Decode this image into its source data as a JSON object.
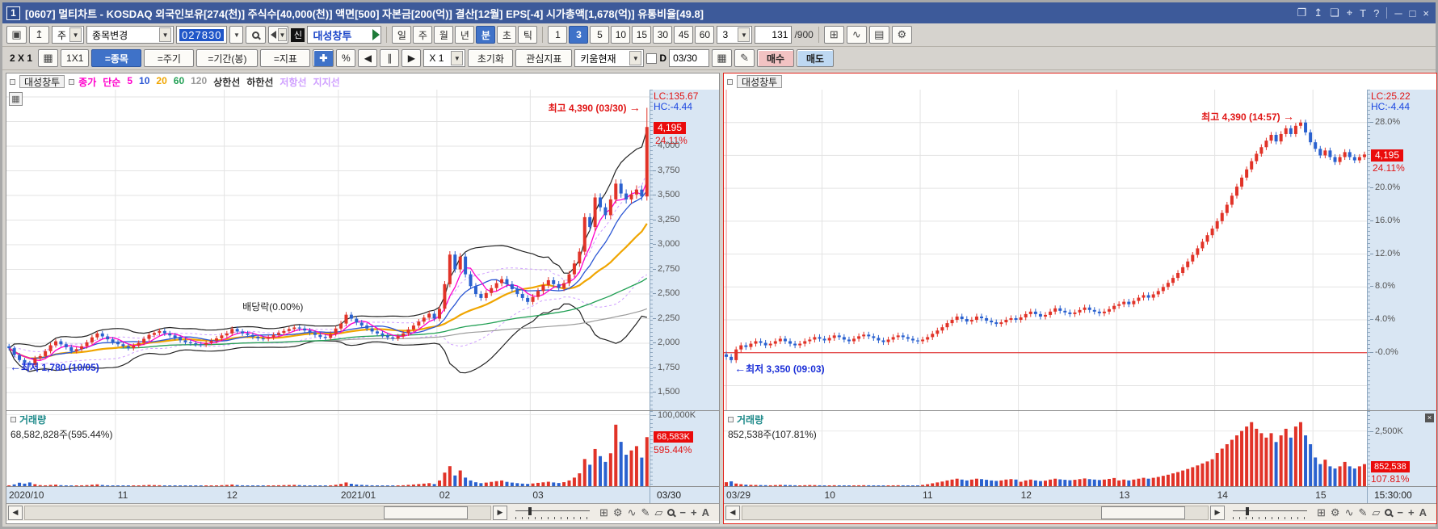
{
  "title_bar": {
    "badge": "1",
    "title": "[0607] 멀티차트 - KOSDAQ 외국인보유[274(천)] 주식수[40,000(천)] 액면[500] 자본금[200(억)] 결산[12월] EPS[-4] 시가총액[1,678(억)] 유통비율[49.8]"
  },
  "toolbar1": {
    "period_combo": "주",
    "stock_change": "종목변경",
    "code": "027830",
    "new_badge": "신",
    "stock_name": "대성창투",
    "periods": [
      "일",
      "주",
      "월",
      "년",
      "분",
      "초",
      "틱"
    ],
    "active_period": "분",
    "minutes": [
      "1",
      "3",
      "5",
      "10",
      "15",
      "30",
      "45",
      "60"
    ],
    "active_minute": "3",
    "tick_combo": "3",
    "bar_index": "131",
    "bar_total": "/900"
  },
  "toolbar2": {
    "layout_label": "2 X 1",
    "grid_button": "1X1",
    "sync_item": "=종목",
    "sync_period": "=주기",
    "sync_range": "=기간(봉)",
    "sync_indicator": "=지표",
    "percent": "%",
    "x_scale": "X 1",
    "reset": "초기화",
    "fav_indicator": "관심지표",
    "kiwoom_current": "키움현재",
    "d_label": "D",
    "date_value": "03/30",
    "buy": "매수",
    "sell": "매도"
  },
  "colors": {
    "up": "#e13328",
    "down": "#2a61cf",
    "accent_blue": "#3f72c8",
    "axis_bg": "#d9e6f3",
    "red_box": "#ea0b0b",
    "titlebar": "#3d5a9a"
  },
  "chart_data": [
    {
      "type": "candlestick",
      "title": "대성창투",
      "legend": [
        {
          "label": "종가",
          "color": "#ff00cc"
        },
        {
          "label": "단순",
          "color": "#ff00cc"
        },
        {
          "label": "5",
          "color": "#ff00cc"
        },
        {
          "label": "10",
          "color": "#2b56d4"
        },
        {
          "label": "20",
          "color": "#f0a500"
        },
        {
          "label": "60",
          "color": "#22a055"
        },
        {
          "label": "120",
          "color": "#9a9a9a"
        },
        {
          "label": "상한선",
          "color": "#333333"
        },
        {
          "label": "하한선",
          "color": "#333333"
        },
        {
          "label": "저항선",
          "color": "#cf9fff"
        },
        {
          "label": "지지선",
          "color": "#cf9fff"
        }
      ],
      "lc": "LC:135.67",
      "hc": "HC:-4.44",
      "last_price": "4,195",
      "last_change_pct": "24.11%",
      "high_annotation": {
        "text": "최고 4,390 (03/30)",
        "value": 4390
      },
      "low_annotation": {
        "text": "최저 1,780 (10/05)",
        "value": 1780,
        "index": 4
      },
      "event_annotation": {
        "text": "배당락(0.00%)",
        "index": 50,
        "value": 2310
      },
      "ylim": [
        1320,
        4574
      ],
      "grid_values": [
        1500,
        1750,
        2000,
        2250,
        2500,
        2750,
        3000,
        3250,
        3500,
        3750,
        4000,
        4250,
        4500
      ],
      "y_ticks": [
        {
          "label": "4,000",
          "v": 4000
        },
        {
          "label": "3,750",
          "v": 3750
        },
        {
          "label": "3,500",
          "v": 3500
        },
        {
          "label": "3,250",
          "v": 3250
        },
        {
          "label": "3,000",
          "v": 3000
        },
        {
          "label": "2,750",
          "v": 2750
        },
        {
          "label": "2,500",
          "v": 2500
        },
        {
          "label": "2,250",
          "v": 2250
        },
        {
          "label": "2,000",
          "v": 2000
        },
        {
          "label": "1,750",
          "v": 1750
        },
        {
          "label": "1,500",
          "v": 1500
        }
      ],
      "x_ticks": [
        {
          "label": "2020/10",
          "pos": 0
        },
        {
          "label": "11",
          "pos": 21
        },
        {
          "label": "12",
          "pos": 42
        },
        {
          "label": "2021/01",
          "pos": 64
        },
        {
          "label": "02",
          "pos": 83
        },
        {
          "label": "03",
          "pos": 101
        }
      ],
      "axis_end_label": "03/30",
      "closes": [
        1950,
        1880,
        1830,
        1800,
        1780,
        1850,
        1870,
        1920,
        1980,
        2020,
        1990,
        1960,
        1920,
        1940,
        1970,
        2010,
        2060,
        2100,
        2070,
        2040,
        2010,
        1990,
        1970,
        1950,
        1975,
        2005,
        2045,
        2085,
        2105,
        2125,
        2100,
        2080,
        2055,
        2030,
        2010,
        2000,
        1990,
        1985,
        2005,
        2025,
        2050,
        2080,
        2100,
        2145,
        2120,
        2100,
        2085,
        2065,
        2050,
        2045,
        2060,
        2085,
        2105,
        2125,
        2145,
        2160,
        2150,
        2130,
        2105,
        2085,
        2065,
        2055,
        2095,
        2150,
        2200,
        2290,
        2250,
        2210,
        2180,
        2150,
        2120,
        2100,
        2080,
        2060,
        2050,
        2070,
        2100,
        2140,
        2180,
        2220,
        2260,
        2300,
        2250,
        2350,
        2600,
        2900,
        2750,
        2880,
        2700,
        2580,
        2500,
        2460,
        2510,
        2560,
        2610,
        2650,
        2600,
        2550,
        2500,
        2460,
        2420,
        2470,
        2530,
        2590,
        2640,
        2600,
        2560,
        2610,
        2700,
        2810,
        2930,
        3280,
        3180,
        3480,
        3380,
        3300,
        3460,
        3620,
        3520,
        3460,
        3510,
        3560,
        3490,
        4195
      ],
      "volumes": [
        1200,
        2500,
        4800,
        3600,
        5200,
        2800,
        1500,
        1200,
        1800,
        2200,
        1400,
        1100,
        900,
        800,
        1200,
        1500,
        2100,
        2600,
        1700,
        1200,
        900,
        800,
        700,
        600,
        800,
        1000,
        1400,
        1800,
        1500,
        1300,
        1100,
        900,
        800,
        700,
        600,
        650,
        600,
        550,
        700,
        900,
        1100,
        1400,
        1800,
        2400,
        1600,
        1200,
        1000,
        900,
        800,
        750,
        900,
        1100,
        1300,
        1500,
        1700,
        1900,
        1500,
        1200,
        1000,
        900,
        800,
        750,
        1200,
        2000,
        3200,
        5200,
        3400,
        2400,
        1900,
        1500,
        1200,
        1000,
        900,
        800,
        750,
        900,
        1300,
        1900,
        2400,
        3000,
        3600,
        4200,
        3000,
        8000,
        19000,
        28000,
        15000,
        22000,
        12000,
        8000,
        5500,
        4200,
        5000,
        6000,
        7000,
        8000,
        6000,
        5000,
        4200,
        3600,
        3200,
        3800,
        4600,
        5400,
        6200,
        5200,
        4400,
        5600,
        8000,
        12000,
        18000,
        38000,
        30000,
        52000,
        42000,
        34000,
        46000,
        86000,
        62000,
        44000,
        50000,
        56000,
        40000,
        68583
      ],
      "vol_axis_max": 105000,
      "volume_title": "거래량",
      "volume_value": "68,582,828주(595.44%)",
      "volume_axis": {
        "top_label": "100,000K",
        "top_value": 100000,
        "current": "68,583K",
        "pct": "595.44%"
      }
    },
    {
      "type": "candlestick_pct",
      "title": "대성창투",
      "lc": "LC:25.22",
      "hc": "HC:-4.44",
      "last_price": "4,195",
      "last_change_pct": "24.11%",
      "high_annotation": {
        "text": "최고 4,390 (14:57)",
        "value": 28.0,
        "index": 117
      },
      "low_annotation": {
        "text": "최저 3,350 (09:03)",
        "value": -0.9,
        "index": 1
      },
      "ylim": [
        -7,
        32
      ],
      "grid_values": [
        -4,
        0,
        4,
        8,
        12,
        16,
        20,
        24,
        28
      ],
      "y_ticks": [
        {
          "label": "28.0%",
          "v": 28
        },
        {
          "label": "20.0%",
          "v": 20
        },
        {
          "label": "16.0%",
          "v": 16
        },
        {
          "label": "12.0%",
          "v": 12
        },
        {
          "label": "8.0%",
          "v": 8
        },
        {
          "label": "4.0%",
          "v": 4
        },
        {
          "label": "-0.0%",
          "v": 0
        }
      ],
      "zero_line": 0,
      "x_ticks": [
        {
          "label": "03/29",
          "pos": 0
        },
        {
          "label": "10",
          "pos": 20
        },
        {
          "label": "11",
          "pos": 40
        },
        {
          "label": "12",
          "pos": 60
        },
        {
          "label": "13",
          "pos": 80
        },
        {
          "label": "14",
          "pos": 100
        },
        {
          "label": "15",
          "pos": 120
        }
      ],
      "axis_end_label": "15:30:00",
      "closes_pct": [
        -0.5,
        -0.9,
        0.4,
        0.9,
        0.7,
        1.1,
        1.4,
        1.2,
        0.9,
        1.1,
        1.4,
        1.7,
        1.4,
        1.1,
        0.9,
        1.1,
        1.4,
        1.6,
        1.9,
        1.7,
        1.5,
        1.8,
        2.1,
        1.9,
        1.6,
        1.4,
        1.7,
        2.0,
        2.2,
        2.0,
        1.8,
        1.5,
        1.3,
        1.6,
        1.9,
        2.1,
        1.9,
        1.7,
        1.5,
        1.4,
        1.6,
        1.9,
        2.3,
        2.7,
        3.1,
        3.6,
        4.0,
        4.4,
        4.1,
        3.8,
        4.0,
        4.4,
        4.2,
        3.9,
        3.7,
        3.5,
        3.7,
        4.0,
        4.2,
        4.0,
        4.3,
        4.7,
        5.0,
        4.7,
        4.4,
        4.6,
        5.0,
        5.4,
        5.1,
        4.9,
        4.7,
        4.9,
        5.2,
        5.5,
        5.2,
        5.0,
        4.8,
        5.0,
        5.3,
        5.7,
        5.9,
        6.2,
        5.9,
        6.3,
        6.7,
        7.0,
        6.7,
        7.1,
        7.5,
        8.0,
        8.5,
        9.1,
        9.7,
        10.4,
        11.1,
        11.9,
        12.7,
        13.5,
        14.3,
        15.1,
        16.0,
        17.0,
        18.0,
        19.1,
        20.2,
        21.3,
        22.3,
        23.3,
        24.2,
        25.0,
        25.8,
        26.5,
        25.7,
        26.6,
        27.3,
        26.6,
        27.6,
        28.0,
        26.8,
        25.6,
        24.8,
        24.0,
        24.6,
        23.8,
        23.2,
        23.8,
        24.4,
        23.8,
        23.4,
        23.8,
        24.11
      ],
      "volumes": [
        180,
        220,
        120,
        90,
        70,
        60,
        55,
        50,
        45,
        40,
        50,
        60,
        55,
        48,
        40,
        36,
        44,
        52,
        48,
        40,
        30,
        36,
        42,
        38,
        32,
        28,
        34,
        40,
        44,
        40,
        36,
        30,
        26,
        32,
        38,
        42,
        38,
        34,
        30,
        28,
        60,
        90,
        130,
        170,
        210,
        260,
        300,
        340,
        300,
        260,
        300,
        340,
        320,
        290,
        260,
        240,
        260,
        300,
        320,
        300,
        200,
        260,
        300,
        260,
        230,
        250,
        300,
        340,
        310,
        290,
        270,
        290,
        320,
        350,
        320,
        300,
        280,
        300,
        330,
        370,
        260,
        300,
        260,
        300,
        340,
        380,
        340,
        380,
        420,
        470,
        520,
        580,
        640,
        710,
        780,
        860,
        940,
        1030,
        1120,
        1220,
        1500,
        1700,
        1900,
        2100,
        2300,
        2500,
        2700,
        2900,
        2600,
        2400,
        2200,
        2400,
        2000,
        2300,
        2600,
        2200,
        2700,
        2900,
        2300,
        1900,
        1300,
        1000,
        1200,
        900,
        800,
        900,
        1100,
        900,
        800,
        900,
        1000
      ],
      "vol_axis_max": 3400,
      "volume_title": "거래량",
      "volume_value": "852,538주(107.81%)",
      "volume_axis": {
        "top_label": "2,500K",
        "top_value": 2500,
        "current": "852,538",
        "pct": "107.81%"
      }
    }
  ]
}
